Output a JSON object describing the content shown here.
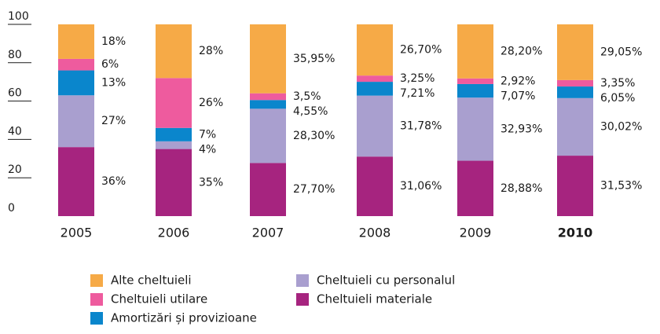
{
  "chart_data": {
    "type": "stacked_bar",
    "categories": [
      "2005",
      "2006",
      "2007",
      "2008",
      "2009",
      "2010"
    ],
    "ylim": [
      0,
      100
    ],
    "yticks": [
      0,
      20,
      40,
      60,
      80,
      100
    ],
    "series": [
      {
        "name": "Cheltuieli materiale",
        "color": "#a6247f",
        "values": [
          36,
          35,
          27.7,
          31.06,
          28.88,
          31.53
        ],
        "value_labels": [
          "36%",
          "35%",
          "27,70%",
          "31,06%",
          "28,88%",
          "31,53%"
        ]
      },
      {
        "name": "Cheltuieli cu personalul",
        "color": "#a99fcf",
        "values": [
          27,
          4,
          28.3,
          31.78,
          32.93,
          30.02
        ],
        "value_labels": [
          "27%",
          "4%",
          "28,30%",
          "31,78%",
          "32,93%",
          "30,02%"
        ]
      },
      {
        "name": "Amortizări și provizioane",
        "color": "#0a86cc",
        "values": [
          13,
          7,
          4.55,
          7.21,
          7.07,
          6.05
        ],
        "value_labels": [
          "13%",
          "7%",
          "4,55%",
          "7,21%",
          "7,07%",
          "6,05%"
        ]
      },
      {
        "name": "Cheltuieli utilare",
        "color": "#ee5b9e",
        "values": [
          6,
          26,
          3.5,
          3.25,
          2.92,
          3.35
        ],
        "value_labels": [
          "6%",
          "26%",
          "3,5%",
          "3,25%",
          "2,92%",
          "3,35%"
        ]
      },
      {
        "name": "Alte cheltuieli",
        "color": "#f6aa47",
        "values": [
          18,
          28,
          35.95,
          26.7,
          28.2,
          29.05
        ],
        "value_labels": [
          "18%",
          "28%",
          "35,95%",
          "26,70%",
          "28,20%",
          "29,05%"
        ]
      }
    ]
  }
}
